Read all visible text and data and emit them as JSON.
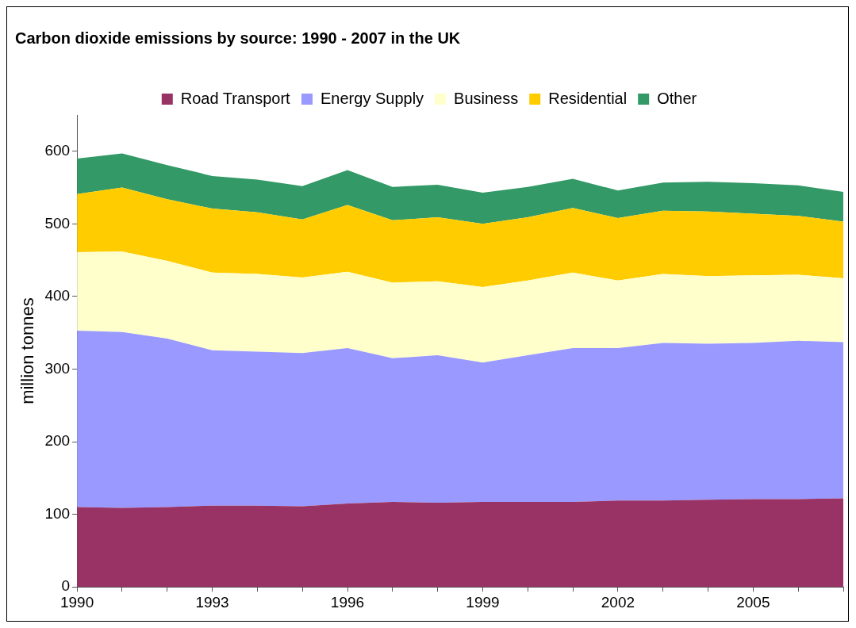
{
  "chart_data": {
    "type": "area",
    "title": "Carbon dioxide emissions by source: 1990 - 2007 in the UK",
    "ylabel": "million tonnes",
    "categories": [
      "1990",
      null,
      null,
      "1993",
      null,
      null,
      "1996",
      null,
      null,
      "1999",
      null,
      null,
      "2002",
      null,
      null,
      "2005",
      null,
      null
    ],
    "stacked": true,
    "ylim": [
      0,
      650
    ],
    "yticks": [
      0,
      100,
      200,
      300,
      400,
      500,
      600
    ],
    "grid": false,
    "legend": "top",
    "marker": "none",
    "series": [
      {
        "name": "Road Transport",
        "color": "#993366",
        "values": [
          110,
          109,
          110,
          112,
          112,
          111,
          115,
          117,
          116,
          117,
          117,
          117,
          119,
          119,
          120,
          121,
          121,
          122
        ]
      },
      {
        "name": "Energy Supply",
        "color": "#9999ff",
        "values": [
          243,
          242,
          232,
          214,
          212,
          211,
          214,
          198,
          203,
          192,
          202,
          212,
          210,
          217,
          215,
          215,
          218,
          215
        ]
      },
      {
        "name": "Business",
        "color": "#ffffcc",
        "values": [
          108,
          111,
          107,
          107,
          107,
          104,
          105,
          104,
          102,
          104,
          103,
          104,
          93,
          95,
          93,
          93,
          91,
          88
        ]
      },
      {
        "name": "Residential",
        "color": "#ffcc00",
        "values": [
          80,
          88,
          85,
          88,
          85,
          80,
          92,
          86,
          88,
          87,
          87,
          89,
          86,
          87,
          89,
          85,
          81,
          78
        ]
      },
      {
        "name": "Other",
        "color": "#339966",
        "values": [
          49,
          47,
          47,
          45,
          45,
          46,
          48,
          46,
          45,
          43,
          42,
          40,
          38,
          39,
          41,
          42,
          42,
          41
        ]
      }
    ]
  }
}
